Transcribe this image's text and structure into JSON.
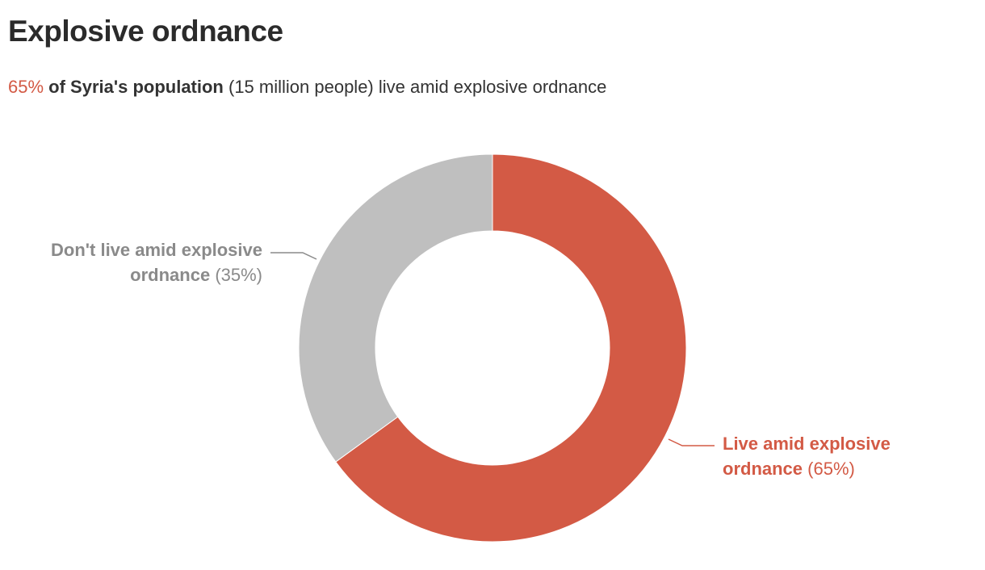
{
  "title": "Explosive ordnance",
  "subtitle": {
    "highlight": "65%",
    "bold": "of Syria's population",
    "rest": "(15 million people) live amid explosive ordnance"
  },
  "colors": {
    "live": "#d35a45",
    "not_live": "#bfbfbf",
    "not_live_label": "#8a8a8a"
  },
  "chart_data": {
    "type": "pie",
    "donut": true,
    "slices": [
      {
        "label_line1": "Live amid explosive",
        "label_line2": "ordnance",
        "pct_text": "(65%)",
        "value": 65,
        "color": "#d35a45"
      },
      {
        "label_line1": "Don't live amid explosive",
        "label_line2": "ordnance",
        "pct_text": "(35%)",
        "value": 35,
        "color": "#bfbfbf"
      }
    ]
  }
}
